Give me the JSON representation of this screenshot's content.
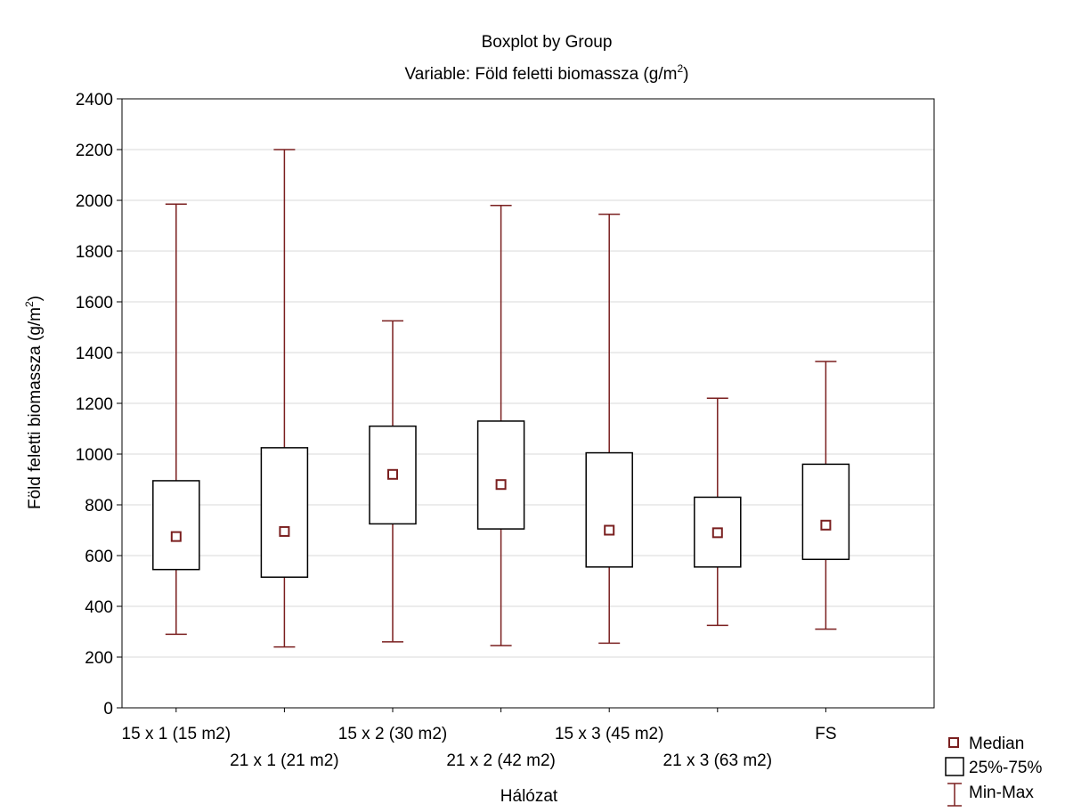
{
  "chart_data": {
    "type": "boxplot",
    "title": "Boxplot by Group",
    "subtitle_prefix": "Variable: Föld feletti biomassza (g/m",
    "subtitle_sup": "2",
    "subtitle_suffix": ")",
    "xlabel": "Hálózat",
    "ylabel_prefix": "Föld feletti biomassza (g/m",
    "ylabel_sup": "2",
    "ylabel_suffix": ")",
    "ylim": [
      0,
      2400
    ],
    "yticks": [
      0,
      200,
      400,
      600,
      800,
      1000,
      1200,
      1400,
      1600,
      1800,
      2000,
      2200,
      2400
    ],
    "grid": true,
    "box_color": "#7a1f1f",
    "categories": [
      "15 x 1 (15 m2)",
      "21 x 1 (21 m2)",
      "15 x 2 (30 m2)",
      "21 x 2 (42 m2)",
      "15 x 3 (45 m2)",
      "21 x 3 (63 m2)",
      "FS"
    ],
    "min": [
      290,
      240,
      260,
      245,
      255,
      325,
      310
    ],
    "q1": [
      545,
      515,
      725,
      705,
      555,
      555,
      585
    ],
    "median": [
      675,
      695,
      920,
      880,
      700,
      690,
      720
    ],
    "q3": [
      895,
      1025,
      1110,
      1130,
      1005,
      830,
      960
    ],
    "max": [
      1985,
      2200,
      1525,
      1980,
      1945,
      1220,
      1365
    ],
    "legend": {
      "position": "bottom-right",
      "median": "Median",
      "box": "25%-75%",
      "whisker": "Min-Max"
    }
  }
}
